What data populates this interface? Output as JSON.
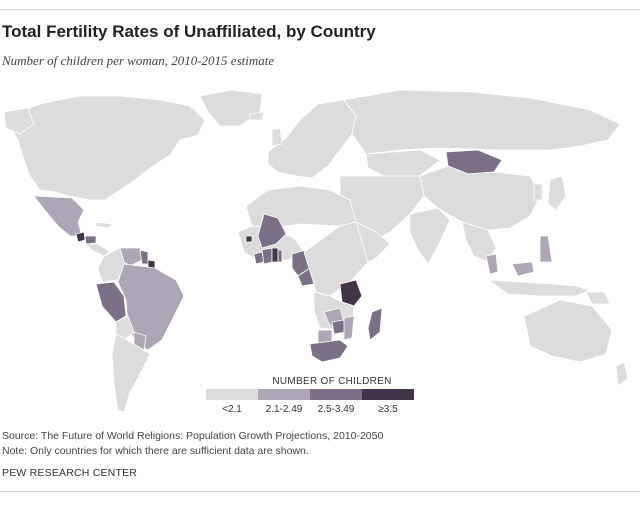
{
  "title": "Total Fertility Rates of Unaffiliated, by Country",
  "subtitle": "Number of children per woman, 2010-2015 estimate",
  "legend": {
    "title": "NUMBER OF CHILDREN",
    "categories": [
      {
        "label": "<2.1",
        "color": "#dcdcdc"
      },
      {
        "label": "2.1-2.49",
        "color": "#aea6b6"
      },
      {
        "label": "2.5-3.49",
        "color": "#7c7089"
      },
      {
        "label": "≥3.5",
        "color": "#403549"
      }
    ]
  },
  "map_data": {
    "no_data_color": "#ffffff",
    "countries": [
      {
        "name": "Mexico",
        "category": "2.1-2.49"
      },
      {
        "name": "Guatemala",
        "category": "≥3.5"
      },
      {
        "name": "Honduras",
        "category": "2.5-3.49"
      },
      {
        "name": "Venezuela",
        "category": "2.1-2.49"
      },
      {
        "name": "Guyana",
        "category": "2.5-3.49"
      },
      {
        "name": "Suriname",
        "category": "≥3.5"
      },
      {
        "name": "Peru",
        "category": "2.5-3.49"
      },
      {
        "name": "Brazil",
        "category": "2.1-2.49"
      },
      {
        "name": "Paraguay",
        "category": "2.1-2.49"
      },
      {
        "name": "Mali",
        "category": "2.5-3.49"
      },
      {
        "name": "Guinea-Bissau",
        "category": "≥3.5"
      },
      {
        "name": "Liberia",
        "category": "2.5-3.49"
      },
      {
        "name": "Cote d'Ivoire",
        "category": "2.5-3.49"
      },
      {
        "name": "Ghana",
        "category": "≥3.5"
      },
      {
        "name": "Togo",
        "category": "2.5-3.49"
      },
      {
        "name": "Nigeria",
        "category": "2.5-3.49"
      },
      {
        "name": "Cameroon",
        "category": "2.5-3.49"
      },
      {
        "name": "Tanzania",
        "category": "≥3.5"
      },
      {
        "name": "Zambia",
        "category": "2.1-2.49"
      },
      {
        "name": "Zimbabwe",
        "category": "2.5-3.49"
      },
      {
        "name": "Mozambique",
        "category": "2.1-2.49"
      },
      {
        "name": "Botswana",
        "category": "2.1-2.49"
      },
      {
        "name": "South Africa",
        "category": "2.5-3.49"
      },
      {
        "name": "Madagascar",
        "category": "2.5-3.49"
      },
      {
        "name": "Mongolia",
        "category": "2.5-3.49"
      },
      {
        "name": "Cambodia",
        "category": "2.1-2.49"
      },
      {
        "name": "Malaysia",
        "category": "2.1-2.49"
      },
      {
        "name": "Philippines",
        "category": "2.1-2.49"
      }
    ]
  },
  "source": "Source: The Future of World Religions: Population Growth Projections, 2010-2050",
  "note": "Note: Only countries for which there are sufficient data are shown.",
  "credit": "PEW RESEARCH CENTER"
}
